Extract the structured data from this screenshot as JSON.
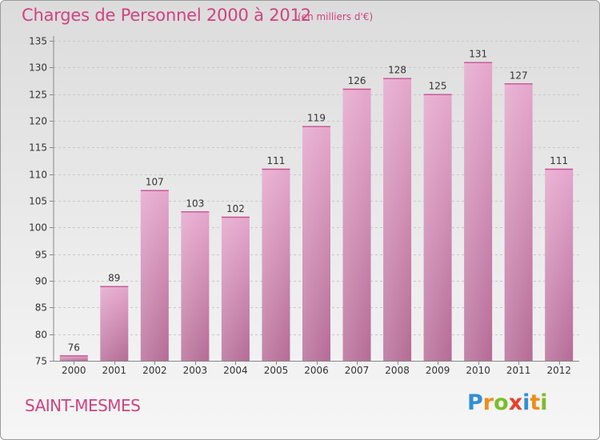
{
  "header": {
    "title": "Charges de Personnel 2000 à 2012",
    "subtitle": "(en milliers d'€)"
  },
  "footer": {
    "city": "SAINT-MESMES",
    "logo_letters": [
      "P",
      "r",
      "o",
      "x",
      "i",
      "t",
      "i"
    ],
    "logo_colors": [
      "#2f8fd8",
      "#f08c1a",
      "#7bbd2b",
      "#e8402b",
      "#2f8fd8",
      "#f08c1a",
      "#7bbd2b"
    ]
  },
  "colors": {
    "bar_top": "#e5a6cc",
    "bar_bottom": "#b56b96",
    "text": "#333333",
    "accent": "#d1427f"
  },
  "chart_data": {
    "type": "bar",
    "title": "Charges de Personnel 2000 à 2012",
    "subtitle": "(en milliers d'€)",
    "categories": [
      "2000",
      "2001",
      "2002",
      "2003",
      "2004",
      "2005",
      "2006",
      "2007",
      "2008",
      "2009",
      "2010",
      "2011",
      "2012"
    ],
    "values": [
      76,
      89,
      107,
      103,
      102,
      111,
      119,
      126,
      128,
      125,
      131,
      127,
      111
    ],
    "ylim": [
      75,
      135
    ],
    "yticks": [
      75,
      80,
      85,
      90,
      95,
      100,
      105,
      110,
      115,
      120,
      125,
      130,
      135
    ],
    "grid": true,
    "data_labels": true
  }
}
